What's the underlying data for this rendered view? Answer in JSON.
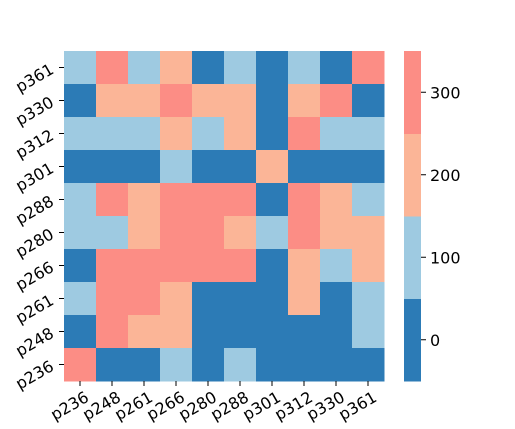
{
  "chart_data": {
    "type": "heatmap",
    "title": "",
    "xlabel": "",
    "ylabel": "",
    "x_labels": [
      "p236",
      "p248",
      "p261",
      "p266",
      "p280",
      "p288",
      "p301",
      "p312",
      "p330",
      "p361"
    ],
    "y_labels": [
      "p361",
      "p330",
      "p312",
      "p301",
      "p288",
      "p280",
      "p266",
      "p261",
      "p248",
      "p236"
    ],
    "values": [
      [
        120,
        300,
        120,
        220,
        20,
        120,
        20,
        120,
        20,
        300
      ],
      [
        20,
        220,
        220,
        300,
        220,
        220,
        20,
        220,
        300,
        20
      ],
      [
        120,
        120,
        120,
        220,
        120,
        220,
        20,
        300,
        120,
        120
      ],
      [
        20,
        20,
        20,
        120,
        20,
        20,
        220,
        20,
        20,
        20
      ],
      [
        120,
        300,
        220,
        300,
        300,
        300,
        20,
        300,
        220,
        120
      ],
      [
        120,
        120,
        220,
        300,
        300,
        220,
        120,
        300,
        220,
        220
      ],
      [
        20,
        300,
        300,
        300,
        300,
        300,
        20,
        220,
        120,
        220
      ],
      [
        120,
        300,
        300,
        220,
        20,
        20,
        20,
        220,
        20,
        120
      ],
      [
        20,
        300,
        220,
        220,
        20,
        20,
        20,
        20,
        20,
        120
      ],
      [
        300,
        20,
        20,
        120,
        20,
        120,
        20,
        20,
        20,
        20
      ]
    ],
    "colorbar": {
      "min": -50,
      "max": 350,
      "ticks": [
        0,
        100,
        200,
        300
      ],
      "tick_labels": [
        "0",
        "100",
        "200",
        "300"
      ],
      "bins": [
        {
          "from": -50,
          "to": 50,
          "color": "#2c7bb6"
        },
        {
          "from": 50,
          "to": 150,
          "color": "#9ecae1"
        },
        {
          "from": 150,
          "to": 250,
          "color": "#fbb597"
        },
        {
          "from": 250,
          "to": 350,
          "color": "#fc8d85"
        }
      ]
    }
  }
}
